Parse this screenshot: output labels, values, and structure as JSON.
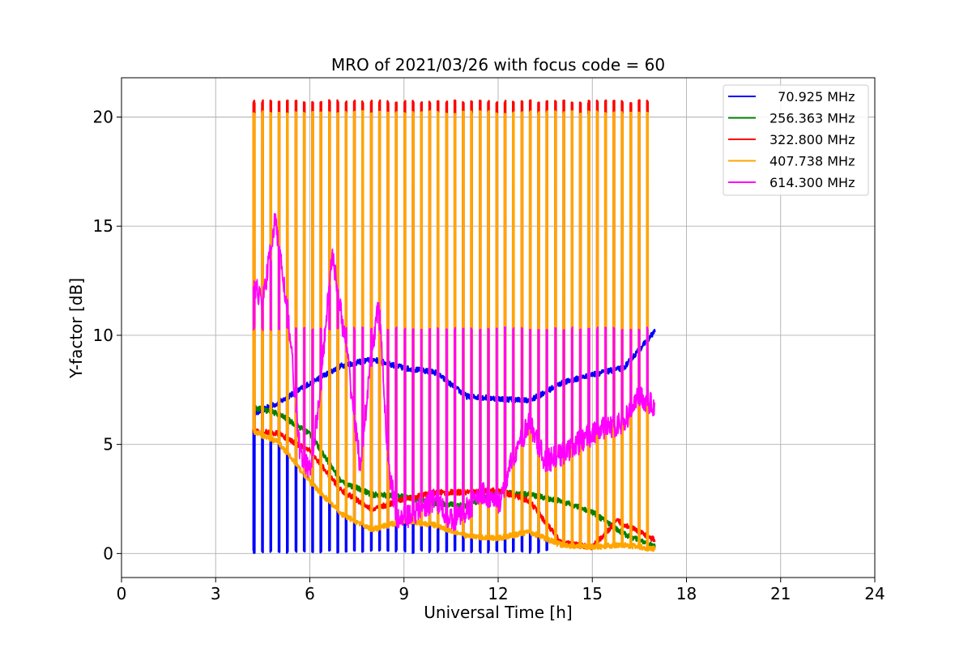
{
  "chart_data": {
    "type": "line",
    "title": "MRO of 2021/03/26 with focus code = 60",
    "xlabel": "Universal Time [h]",
    "ylabel": "Y-factor [dB]",
    "xlim": [
      0,
      24
    ],
    "ylim": [
      -1.1,
      21.8
    ],
    "xticks": [
      0,
      3,
      6,
      9,
      12,
      15,
      18,
      21,
      24
    ],
    "yticks": [
      0,
      5,
      10,
      15,
      20
    ],
    "grid": true,
    "legend_position": "top-right",
    "cycle": {
      "start": 4.2,
      "end": 17.0,
      "period": 0.2667
    },
    "series": [
      {
        "name": "70.925 MHz",
        "legend_label": "  70.925 MHz",
        "color": "#0000ff",
        "baseline": [
          [
            4.2,
            6.4
          ],
          [
            5.0,
            6.9
          ],
          [
            6.0,
            7.8
          ],
          [
            7.0,
            8.6
          ],
          [
            8.0,
            8.9
          ],
          [
            9.0,
            8.5
          ],
          [
            10.0,
            8.3
          ],
          [
            11.0,
            7.2
          ],
          [
            12.0,
            7.1
          ],
          [
            13.0,
            7.0
          ],
          [
            14.0,
            7.8
          ],
          [
            15.0,
            8.2
          ],
          [
            16.0,
            8.5
          ],
          [
            17.0,
            10.2
          ]
        ],
        "spike_to": 0.1,
        "spike_until": 13.7
      },
      {
        "name": "256.363 MHz",
        "legend_label": "256.363 MHz",
        "color": "#008000",
        "baseline": [
          [
            4.2,
            6.7
          ],
          [
            5.0,
            6.4
          ],
          [
            6.0,
            5.5
          ],
          [
            7.0,
            3.3
          ],
          [
            8.0,
            2.7
          ],
          [
            9.0,
            2.6
          ],
          [
            10.0,
            2.3
          ],
          [
            11.0,
            2.2
          ],
          [
            12.0,
            2.8
          ],
          [
            13.0,
            2.7
          ],
          [
            14.0,
            2.4
          ],
          [
            15.0,
            1.9
          ],
          [
            16.0,
            0.9
          ],
          [
            17.0,
            0.3
          ]
        ]
      },
      {
        "name": "322.800 MHz",
        "legend_label": "322.800 MHz",
        "color": "#ff0000",
        "baseline": [
          [
            4.2,
            5.6
          ],
          [
            5.0,
            5.5
          ],
          [
            6.0,
            4.7
          ],
          [
            7.0,
            2.9
          ],
          [
            8.0,
            2.0
          ],
          [
            9.0,
            2.5
          ],
          [
            10.0,
            2.8
          ],
          [
            11.0,
            2.8
          ],
          [
            12.0,
            2.9
          ],
          [
            13.0,
            2.4
          ],
          [
            14.0,
            0.5
          ],
          [
            15.0,
            0.3
          ],
          [
            15.8,
            1.5
          ],
          [
            16.5,
            1.0
          ],
          [
            17.0,
            0.6
          ]
        ],
        "spike_to": 20.7
      },
      {
        "name": "407.738 MHz",
        "legend_label": "407.738 MHz",
        "color": "#ffa500",
        "baseline": [
          [
            4.2,
            5.6
          ],
          [
            5.0,
            5.1
          ],
          [
            6.0,
            3.3
          ],
          [
            7.0,
            1.8
          ],
          [
            8.0,
            1.1
          ],
          [
            9.0,
            1.5
          ],
          [
            10.0,
            1.3
          ],
          [
            11.0,
            0.8
          ],
          [
            12.0,
            0.7
          ],
          [
            13.0,
            1.0
          ],
          [
            14.0,
            0.4
          ],
          [
            15.0,
            0.3
          ],
          [
            16.0,
            0.4
          ],
          [
            17.0,
            0.2
          ]
        ],
        "spike_to": 20.2
      },
      {
        "name": "614.300 MHz",
        "legend_label": "614.300 MHz",
        "color": "#ff00ff",
        "baseline": [
          [
            4.2,
            12.4
          ],
          [
            4.5,
            11.5
          ],
          [
            4.9,
            15.3
          ],
          [
            5.3,
            11.0
          ],
          [
            5.7,
            4.5
          ],
          [
            6.0,
            3.8
          ],
          [
            6.3,
            7.0
          ],
          [
            6.7,
            13.8
          ],
          [
            7.2,
            9.0
          ],
          [
            7.6,
            4.0
          ],
          [
            8.0,
            9.5
          ],
          [
            8.2,
            11.5
          ],
          [
            8.5,
            4.0
          ],
          [
            8.8,
            1.5
          ],
          [
            9.5,
            2.0
          ],
          [
            10.0,
            2.5
          ],
          [
            10.5,
            1.5
          ],
          [
            11.0,
            2.0
          ],
          [
            11.5,
            2.8
          ],
          [
            12.0,
            2.2
          ],
          [
            12.5,
            4.5
          ],
          [
            13.0,
            6.0
          ],
          [
            13.5,
            4.2
          ],
          [
            14.0,
            4.5
          ],
          [
            14.5,
            5.0
          ],
          [
            15.0,
            5.5
          ],
          [
            15.5,
            5.8
          ],
          [
            16.0,
            6.0
          ],
          [
            16.5,
            7.2
          ],
          [
            17.0,
            6.8
          ]
        ],
        "spike_to": 10.3,
        "spike_from": 5.2
      }
    ]
  }
}
